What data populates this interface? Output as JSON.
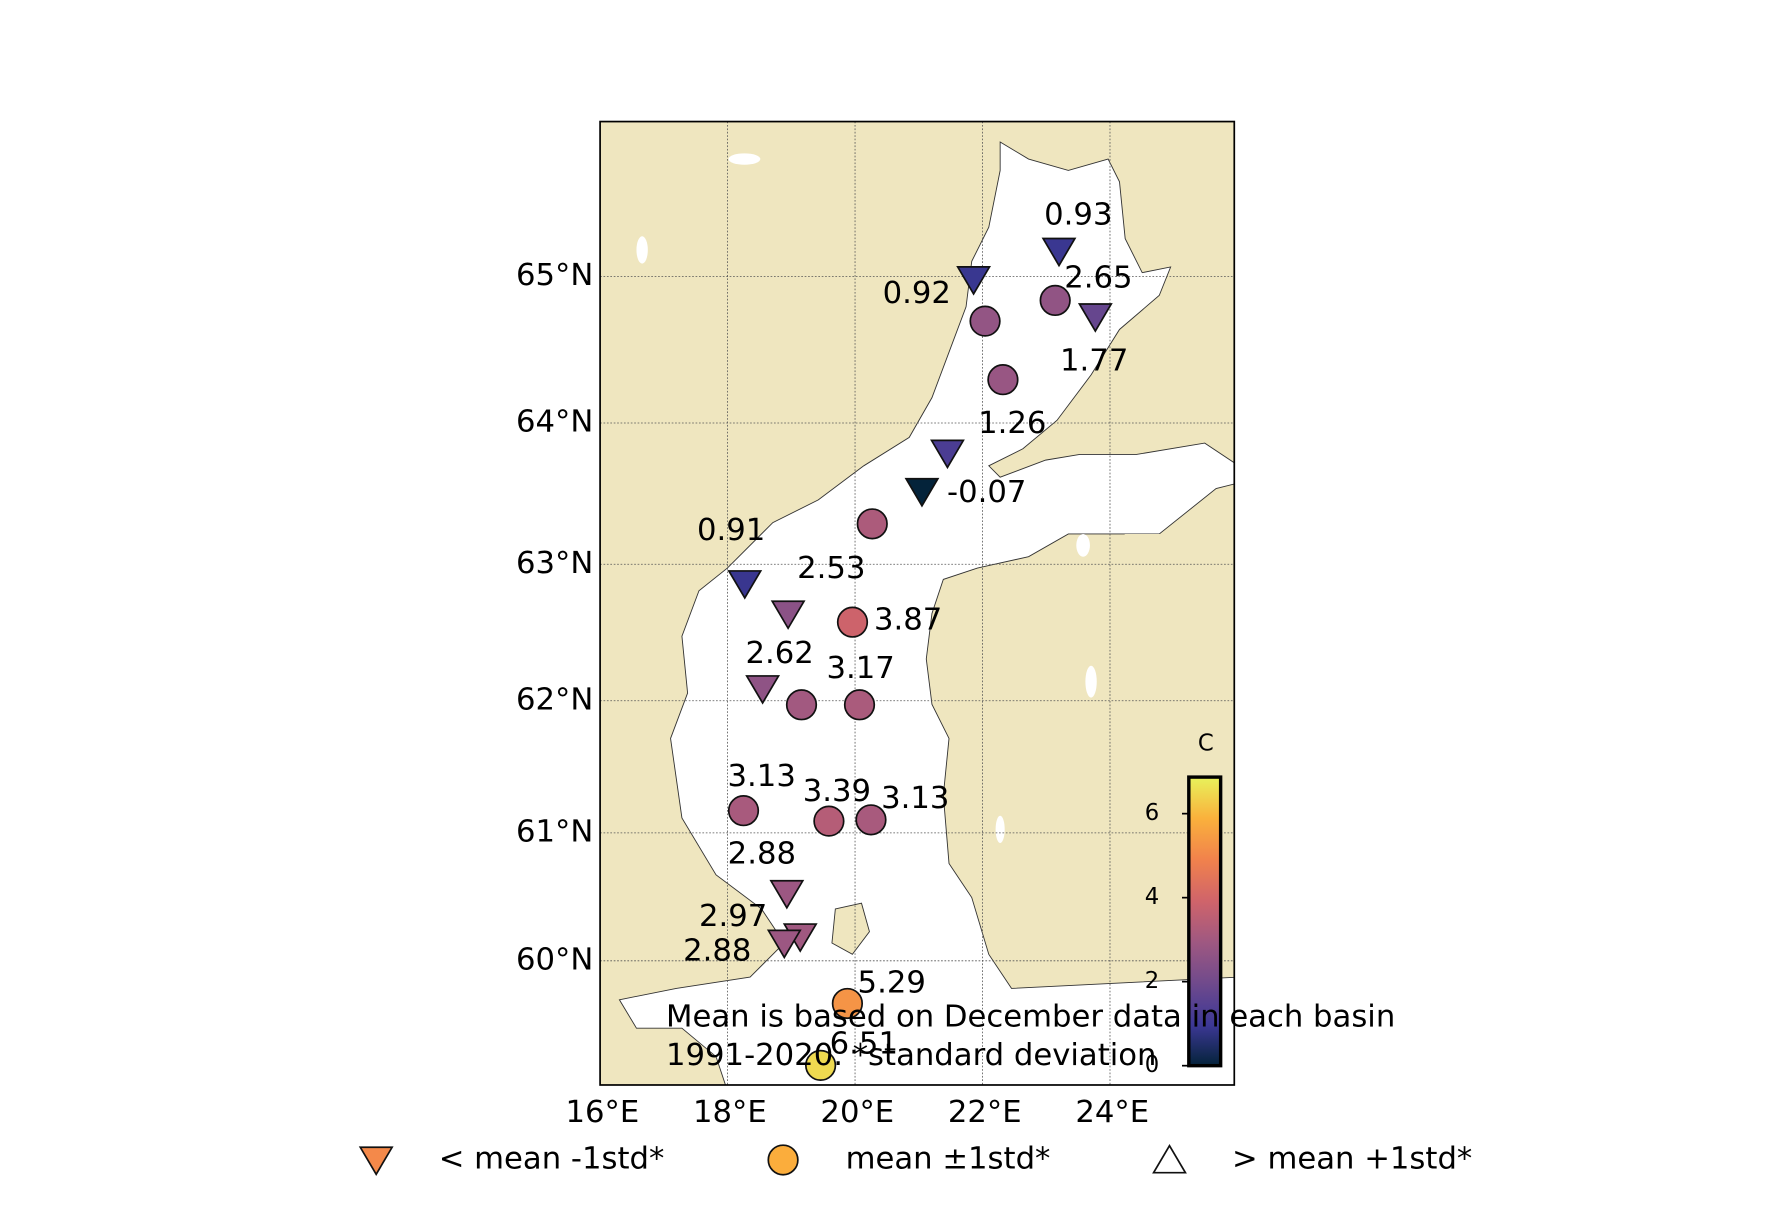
{
  "chart_data": {
    "type": "map",
    "xlim": [
      16,
      25.95
    ],
    "ylim": [
      59,
      66.02
    ],
    "xticks": [
      {
        "value": 16,
        "label": "16°E"
      },
      {
        "value": 18,
        "label": "18°E"
      },
      {
        "value": 20,
        "label": "20°E"
      },
      {
        "value": 22,
        "label": "22°E"
      },
      {
        "value": 24,
        "label": "24°E"
      }
    ],
    "yticks": [
      {
        "value": 60,
        "label": "60°N"
      },
      {
        "value": 61,
        "label": "61°N"
      },
      {
        "value": 62,
        "label": "62°N"
      },
      {
        "value": 63,
        "label": "63°N"
      },
      {
        "value": 64,
        "label": "64°N"
      },
      {
        "value": 65,
        "label": "65°N"
      }
    ],
    "grid": true,
    "land_color": "#efe6bf",
    "sea_color": "#ffffff",
    "colormap": [
      "#04233a",
      "#3d3896",
      "#704a8c",
      "#9f5881",
      "#d0646a",
      "#f1824c",
      "#fab13c",
      "#e8f25b"
    ],
    "clim": [
      0,
      6.87
    ],
    "colorbar_label": "C",
    "colorbar_ticks": [
      0,
      2,
      4,
      6
    ],
    "stations": [
      {
        "lon": 23.2,
        "lat": 65.17,
        "value": 0.93,
        "marker": "triangle-down"
      },
      {
        "lon": 21.86,
        "lat": 64.98,
        "value": 0.92,
        "marker": "triangle-down"
      },
      {
        "lon": 23.14,
        "lat": 64.84,
        "value": 2.65,
        "marker": "circle"
      },
      {
        "lon": 23.77,
        "lat": 64.73,
        "value": 1.77,
        "marker": "triangle-down"
      },
      {
        "lon": 21.45,
        "lat": 63.79,
        "value": 1.26,
        "marker": "triangle-down"
      },
      {
        "lon": 21.05,
        "lat": 63.52,
        "value": -0.07,
        "marker": "triangle-down"
      },
      {
        "lon": 18.27,
        "lat": 62.86,
        "value": 0.91,
        "marker": "triangle-down"
      },
      {
        "lon": 18.95,
        "lat": 62.64,
        "value": 2.53,
        "marker": "triangle-down"
      },
      {
        "lon": 19.96,
        "lat": 62.58,
        "value": 3.87,
        "marker": "circle"
      },
      {
        "lon": 18.55,
        "lat": 62.09,
        "value": 2.62,
        "marker": "triangle-down"
      },
      {
        "lon": 20.07,
        "lat": 61.97,
        "value": 3.17,
        "marker": "circle"
      },
      {
        "lon": 18.25,
        "lat": 61.17,
        "value": 3.13,
        "marker": "circle"
      },
      {
        "lon": 19.59,
        "lat": 61.09,
        "value": 3.39,
        "marker": "circle"
      },
      {
        "lon": 20.25,
        "lat": 61.1,
        "value": 3.13,
        "marker": "circle"
      },
      {
        "lon": 18.93,
        "lat": 60.53,
        "value": 2.88,
        "marker": "triangle-down"
      },
      {
        "lon": 19.14,
        "lat": 60.19,
        "value": 2.97,
        "marker": "triangle-down"
      },
      {
        "lon": 18.89,
        "lat": 60.14,
        "value": 2.88,
        "marker": "triangle-down"
      },
      {
        "lon": 19.88,
        "lat": 59.66,
        "value": 5.29,
        "marker": "circle"
      },
      {
        "lon": 19.46,
        "lat": 59.16,
        "value": 6.51,
        "marker": "circle"
      }
    ],
    "unlabeled_stations": [
      {
        "lon": 22.04,
        "lat": 64.7,
        "value": 2.7,
        "marker": "circle"
      },
      {
        "lon": 22.32,
        "lat": 64.3,
        "value": 2.8,
        "marker": "circle"
      },
      {
        "lon": 20.27,
        "lat": 63.29,
        "value": 3.2,
        "marker": "circle"
      },
      {
        "lon": 19.16,
        "lat": 61.97,
        "value": 3.0,
        "marker": "circle"
      }
    ],
    "annotation": [
      "Mean is based on December data in each basin",
      "1991-2020. *standard deviation"
    ],
    "legend": [
      {
        "marker": "triangle-down",
        "color": "#f4894a",
        "label": "< mean -1std*"
      },
      {
        "marker": "circle",
        "color": "#fbad3c",
        "label": "mean ±1std*"
      },
      {
        "marker": "triangle-up",
        "color": "#ffffff",
        "label": "> mean +1std*"
      }
    ]
  }
}
